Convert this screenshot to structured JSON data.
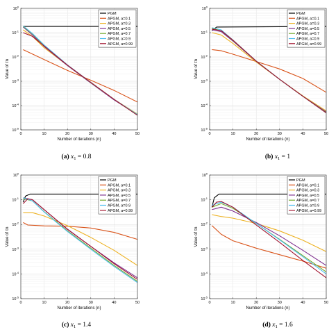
{
  "chart_data": [
    {
      "type": "line",
      "caption": {
        "label": "(a)",
        "math": "x",
        "sub": "1",
        "rest": " = 0.8"
      },
      "xlabel": "Number of iterations (n)",
      "ylabel": "Value of τn",
      "xlim": [
        0,
        50
      ],
      "ylim": [
        1e-05,
        1
      ],
      "xticks": [
        0,
        10,
        20,
        30,
        40,
        50
      ],
      "yticks": [
        {
          "v": 1e-05,
          "e": "-5"
        },
        {
          "v": 0.0001,
          "e": "-4"
        },
        {
          "v": 0.001,
          "e": "-3"
        },
        {
          "v": 0.01,
          "e": "-2"
        },
        {
          "v": 0.1,
          "e": "-1"
        },
        {
          "v": 1,
          "e": "0"
        }
      ],
      "log_y": true,
      "grid": true,
      "legend": "top-right",
      "series": [
        {
          "name": "PGM",
          "color": "#000000",
          "points": [
            [
              1,
              0.18
            ],
            [
              50,
              0.18
            ]
          ]
        },
        {
          "name": "APGM, a=0.1",
          "color": "#d95319",
          "points": [
            [
              1,
              0.02
            ],
            [
              10,
              0.0078
            ],
            [
              20,
              0.0028
            ],
            [
              30,
              0.0011
            ],
            [
              40,
              0.00042
            ],
            [
              50,
              0.00014
            ]
          ]
        },
        {
          "name": "APGM, a=0.3",
          "color": "#edb120",
          "points": [
            [
              1,
              0.13
            ],
            [
              5,
              0.07
            ],
            [
              10,
              0.024
            ],
            [
              20,
              0.0045
            ],
            [
              30,
              0.0009
            ],
            [
              40,
              0.00018
            ],
            [
              50,
              4.5e-05
            ]
          ]
        },
        {
          "name": "APGM, a=0.5",
          "color": "#7e2f8e",
          "points": [
            [
              1,
              0.17
            ],
            [
              5,
              0.08
            ],
            [
              10,
              0.027
            ],
            [
              20,
              0.0044
            ],
            [
              30,
              0.00085
            ],
            [
              40,
              0.00017
            ],
            [
              50,
              4.2e-05
            ]
          ]
        },
        {
          "name": "APGM, a=0.7",
          "color": "#77ac30",
          "points": [
            [
              1,
              0.18
            ],
            [
              5,
              0.088
            ],
            [
              10,
              0.03
            ],
            [
              20,
              0.0046
            ],
            [
              30,
              0.00088
            ],
            [
              40,
              0.00018
            ],
            [
              50,
              4e-05
            ]
          ]
        },
        {
          "name": "APGM, a=0.9",
          "color": "#4dbeee",
          "points": [
            [
              1,
              0.19
            ],
            [
              5,
              0.092
            ],
            [
              10,
              0.031
            ],
            [
              20,
              0.0047
            ],
            [
              30,
              0.0009
            ],
            [
              40,
              0.00018
            ],
            [
              50,
              4.3e-05
            ]
          ]
        },
        {
          "name": "APGM, a=0.99",
          "color": "#a2142f",
          "points": [
            [
              1,
              0.1
            ],
            [
              5,
              0.07
            ],
            [
              10,
              0.028
            ],
            [
              20,
              0.0046
            ],
            [
              30,
              0.0009
            ],
            [
              40,
              0.00018
            ],
            [
              50,
              4e-05
            ]
          ]
        }
      ]
    },
    {
      "type": "line",
      "caption": {
        "label": "(b)",
        "math": "x",
        "sub": "1",
        "rest": " = 1"
      },
      "xlabel": "Number of iterations (n)",
      "ylabel": "Value of τn",
      "xlim": [
        0,
        50
      ],
      "ylim": [
        1e-05,
        1
      ],
      "xticks": [
        0,
        10,
        20,
        30,
        40,
        50
      ],
      "yticks": [
        {
          "v": 1e-05,
          "e": "-5"
        },
        {
          "v": 0.0001,
          "e": "-4"
        },
        {
          "v": 0.001,
          "e": "-3"
        },
        {
          "v": 0.01,
          "e": "-2"
        },
        {
          "v": 0.1,
          "e": "-1"
        },
        {
          "v": 1,
          "e": "0"
        }
      ],
      "log_y": true,
      "grid": true,
      "legend": "top-right",
      "series": [
        {
          "name": "PGM",
          "color": "#000000",
          "points": [
            [
              1,
              0.12
            ],
            [
              3,
              0.17
            ],
            [
              50,
              0.18
            ]
          ]
        },
        {
          "name": "APGM, a=0.1",
          "color": "#d95319",
          "points": [
            [
              1,
              0.02
            ],
            [
              5,
              0.018
            ],
            [
              10,
              0.013
            ],
            [
              20,
              0.0065
            ],
            [
              30,
              0.0032
            ],
            [
              40,
              0.0013
            ],
            [
              50,
              0.00035
            ]
          ]
        },
        {
          "name": "APGM, a=0.3",
          "color": "#edb120",
          "points": [
            [
              1,
              0.1
            ],
            [
              5,
              0.08
            ],
            [
              10,
              0.036
            ],
            [
              20,
              0.0062
            ],
            [
              30,
              0.0012
            ],
            [
              40,
              0.00025
            ],
            [
              50,
              6e-05
            ]
          ]
        },
        {
          "name": "APGM, a=0.5",
          "color": "#7e2f8e",
          "points": [
            [
              1,
              0.13
            ],
            [
              5,
              0.11
            ],
            [
              10,
              0.045
            ],
            [
              20,
              0.0066
            ],
            [
              30,
              0.0012
            ],
            [
              40,
              0.00024
            ],
            [
              50,
              5.5e-05
            ]
          ]
        },
        {
          "name": "APGM, a=0.7",
          "color": "#77ac30",
          "points": [
            [
              1,
              0.15
            ],
            [
              5,
              0.12
            ],
            [
              10,
              0.048
            ],
            [
              20,
              0.0067
            ],
            [
              30,
              0.0012
            ],
            [
              40,
              0.00024
            ],
            [
              50,
              5.2e-05
            ]
          ]
        },
        {
          "name": "APGM, a=0.9",
          "color": "#4dbeee",
          "points": [
            [
              1,
              0.16
            ],
            [
              5,
              0.13
            ],
            [
              10,
              0.05
            ],
            [
              20,
              0.0068
            ],
            [
              30,
              0.0012
            ],
            [
              40,
              0.00024
            ],
            [
              50,
              5e-05
            ]
          ]
        },
        {
          "name": "APGM, a=0.99",
          "color": "#a2142f",
          "points": [
            [
              1,
              0.14
            ],
            [
              5,
              0.12
            ],
            [
              10,
              0.049
            ],
            [
              20,
              0.0067
            ],
            [
              30,
              0.0012
            ],
            [
              40,
              0.00024
            ],
            [
              50,
              5e-05
            ]
          ]
        }
      ]
    },
    {
      "type": "line",
      "caption": {
        "label": "(c)",
        "math": "x",
        "sub": "1",
        "rest": " = 1.4"
      },
      "xlabel": "Number of iterations (n)",
      "ylabel": "Value of τn",
      "xlim": [
        0,
        50
      ],
      "ylim": [
        1e-05,
        1
      ],
      "xticks": [
        0,
        10,
        20,
        30,
        40,
        50
      ],
      "yticks": [
        {
          "v": 1e-05,
          "e": "-5"
        },
        {
          "v": 0.0001,
          "e": "-4"
        },
        {
          "v": 0.001,
          "e": "-3"
        },
        {
          "v": 0.01,
          "e": "-2"
        },
        {
          "v": 0.1,
          "e": "-1"
        },
        {
          "v": 1,
          "e": "0"
        }
      ],
      "log_y": true,
      "grid": true,
      "legend": "top-right",
      "series": [
        {
          "name": "PGM",
          "color": "#000000",
          "points": [
            [
              1,
              0.08
            ],
            [
              2,
              0.14
            ],
            [
              4,
              0.17
            ],
            [
              50,
              0.17
            ]
          ]
        },
        {
          "name": "APGM, a=0.1",
          "color": "#d95319",
          "points": [
            [
              1,
              0.012
            ],
            [
              3,
              0.0095
            ],
            [
              10,
              0.0088
            ],
            [
              20,
              0.0085
            ],
            [
              30,
              0.0072
            ],
            [
              40,
              0.0048
            ],
            [
              50,
              0.0025
            ]
          ]
        },
        {
          "name": "APGM, a=0.3",
          "color": "#edb120",
          "points": [
            [
              1,
              0.03
            ],
            [
              5,
              0.03
            ],
            [
              10,
              0.022
            ],
            [
              20,
              0.009
            ],
            [
              30,
              0.003
            ],
            [
              40,
              0.0009
            ],
            [
              50,
              0.00022
            ]
          ]
        },
        {
          "name": "APGM, a=0.5",
          "color": "#7e2f8e",
          "points": [
            [
              1,
              0.12
            ],
            [
              5,
              0.1
            ],
            [
              10,
              0.04
            ],
            [
              20,
              0.0065
            ],
            [
              30,
              0.0013
            ],
            [
              40,
              0.00028
            ],
            [
              50,
              7e-05
            ]
          ]
        },
        {
          "name": "APGM, a=0.7",
          "color": "#77ac30",
          "points": [
            [
              1,
              0.11
            ],
            [
              5,
              0.09
            ],
            [
              10,
              0.033
            ],
            [
              20,
              0.0055
            ],
            [
              30,
              0.0011
            ],
            [
              40,
              0.00022
            ],
            [
              50,
              5e-05
            ]
          ]
        },
        {
          "name": "APGM, a=0.9",
          "color": "#4dbeee",
          "points": [
            [
              1,
              0.12
            ],
            [
              5,
              0.09
            ],
            [
              10,
              0.032
            ],
            [
              20,
              0.0052
            ],
            [
              30,
              0.001
            ],
            [
              40,
              0.0002
            ],
            [
              50,
              4.5e-05
            ]
          ]
        },
        {
          "name": "APGM, a=0.99",
          "color": "#a2142f",
          "points": [
            [
              1,
              0.07
            ],
            [
              3,
              0.11
            ],
            [
              5,
              0.1
            ],
            [
              10,
              0.04
            ],
            [
              20,
              0.0063
            ],
            [
              30,
              0.0013
            ],
            [
              40,
              0.00026
            ],
            [
              50,
              6e-05
            ]
          ]
        }
      ]
    },
    {
      "type": "line",
      "caption": {
        "label": "(d)",
        "math": "x",
        "sub": "1",
        "rest": " = 1.6"
      },
      "xlabel": "Number of iterations (n)",
      "ylabel": "Value of τn",
      "xlim": [
        0,
        50
      ],
      "ylim": [
        1e-05,
        1
      ],
      "xticks": [
        0,
        10,
        20,
        30,
        40,
        50
      ],
      "yticks": [
        {
          "v": 1e-05,
          "e": "-5"
        },
        {
          "v": 0.0001,
          "e": "-4"
        },
        {
          "v": 0.001,
          "e": "-3"
        },
        {
          "v": 0.01,
          "e": "-2"
        },
        {
          "v": 0.1,
          "e": "-1"
        },
        {
          "v": 1,
          "e": "0"
        }
      ],
      "log_y": true,
      "grid": true,
      "legend": "top-right",
      "series": [
        {
          "name": "PGM",
          "color": "#000000",
          "points": [
            [
              1,
              0.05
            ],
            [
              2,
              0.12
            ],
            [
              4,
              0.17
            ],
            [
              50,
              0.17
            ]
          ]
        },
        {
          "name": "APGM, a=0.1",
          "color": "#d95319",
          "points": [
            [
              1,
              0.009
            ],
            [
              5,
              0.004
            ],
            [
              10,
              0.0022
            ],
            [
              20,
              0.0011
            ],
            [
              30,
              0.0006
            ],
            [
              40,
              0.00033
            ],
            [
              50,
              0.00017
            ]
          ]
        },
        {
          "name": "APGM, a=0.3",
          "color": "#edb120",
          "points": [
            [
              1,
              0.025
            ],
            [
              5,
              0.021
            ],
            [
              10,
              0.018
            ],
            [
              20,
              0.011
            ],
            [
              30,
              0.0055
            ],
            [
              40,
              0.0023
            ],
            [
              50,
              0.0008
            ]
          ]
        },
        {
          "name": "APGM, a=0.5",
          "color": "#7e2f8e",
          "points": [
            [
              1,
              0.04
            ],
            [
              5,
              0.05
            ],
            [
              10,
              0.035
            ],
            [
              20,
              0.012
            ],
            [
              30,
              0.0035
            ],
            [
              40,
              0.0009
            ],
            [
              50,
              0.00022
            ]
          ]
        },
        {
          "name": "APGM, a=0.7",
          "color": "#77ac30",
          "points": [
            [
              1,
              0.05
            ],
            [
              5,
              0.07
            ],
            [
              10,
              0.045
            ],
            [
              20,
              0.011
            ],
            [
              30,
              0.0025
            ],
            [
              40,
              0.00055
            ],
            [
              50,
              0.00012
            ]
          ]
        },
        {
          "name": "APGM, a=0.9",
          "color": "#4dbeee",
          "points": [
            [
              1,
              0.06
            ],
            [
              5,
              0.08
            ],
            [
              10,
              0.05
            ],
            [
              20,
              0.011
            ],
            [
              30,
              0.0024
            ],
            [
              40,
              0.0005
            ],
            [
              50,
              0.0001
            ]
          ]
        },
        {
          "name": "APGM, a=0.99",
          "color": "#a2142f",
          "points": [
            [
              1,
              0.05
            ],
            [
              3,
              0.08
            ],
            [
              5,
              0.085
            ],
            [
              10,
              0.05
            ],
            [
              20,
              0.0095
            ],
            [
              30,
              0.0019
            ],
            [
              40,
              0.00035
            ],
            [
              50,
              7e-05
            ]
          ]
        }
      ]
    }
  ]
}
